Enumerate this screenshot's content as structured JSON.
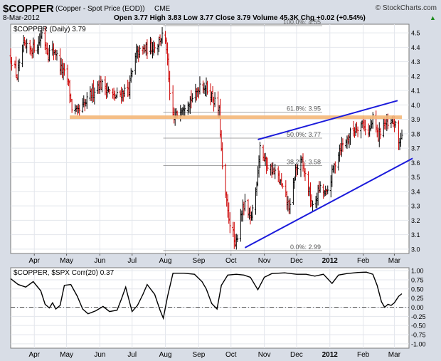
{
  "header": {
    "symbol": "$COPPER",
    "name": "(Copper - Spot Price (EOD))",
    "exchange": "CME",
    "watermark": "© StockCharts.com",
    "date": "8-Mar-2012",
    "quote": "Open 3.77  High 3.83  Low 3.77  Close 3.79  Volume 45.3K  Chg +0.02 (+0.54%)",
    "up_arrow": "▲"
  },
  "colors": {
    "background": "#d8dde6",
    "panel": "#ffffff",
    "up_bar": "#000000",
    "down_bar": "#cc0000",
    "resistance": "#f5b87a",
    "trendline": "#1a1adb",
    "fib": "#888888"
  },
  "chart_data": [
    {
      "type": "ohlc",
      "legend": "$COPPER (Daily) 3.79",
      "y_ticks": [
        3.0,
        3.1,
        3.2,
        3.3,
        3.4,
        3.5,
        3.6,
        3.7,
        3.8,
        3.9,
        4.0,
        4.1,
        4.2,
        4.3,
        4.4,
        4.5
      ],
      "y_tick_labels": [
        "3.0",
        "3.1",
        "3.2",
        "3.3",
        "3.4",
        "3.5",
        "3.6",
        "3.7",
        "3.8",
        "3.9",
        "4.0",
        "4.1",
        "4.2",
        "4.3",
        "4.4",
        "4.5"
      ],
      "x_labels": [
        "Apr",
        "May",
        "Jun",
        "Jul",
        "Aug",
        "Sep",
        "Oct",
        "Nov",
        "Dec",
        "2012",
        "Feb",
        "Mar"
      ],
      "x_label_dates": [
        "2011-04-01",
        "2011-05-01",
        "2011-06-01",
        "2011-07-01",
        "2011-08-01",
        "2011-09-01",
        "2011-10-01",
        "2011-11-01",
        "2011-12-01",
        "2012-01-01",
        "2012-02-01",
        "2012-03-01"
      ],
      "x_range": [
        "2011-03-10",
        "2012-03-08"
      ],
      "close_path": [
        [
          "2011-03-10",
          4.33
        ],
        [
          "2011-03-16",
          4.2
        ],
        [
          "2011-03-22",
          4.4
        ],
        [
          "2011-03-28",
          4.38
        ],
        [
          "2011-04-05",
          4.43
        ],
        [
          "2011-04-08",
          4.5
        ],
        [
          "2011-04-14",
          4.36
        ],
        [
          "2011-04-20",
          4.38
        ],
        [
          "2011-04-26",
          4.25
        ],
        [
          "2011-05-02",
          4.18
        ],
        [
          "2011-05-06",
          3.98
        ],
        [
          "2011-05-11",
          3.94
        ],
        [
          "2011-05-18",
          4.0
        ],
        [
          "2011-05-24",
          4.08
        ],
        [
          "2011-05-31",
          4.15
        ],
        [
          "2011-06-07",
          4.12
        ],
        [
          "2011-06-14",
          4.05
        ],
        [
          "2011-06-21",
          4.08
        ],
        [
          "2011-06-28",
          4.12
        ],
        [
          "2011-07-05",
          4.35
        ],
        [
          "2011-07-11",
          4.38
        ],
        [
          "2011-07-18",
          4.4
        ],
        [
          "2011-07-25",
          4.43
        ],
        [
          "2011-07-29",
          4.48
        ],
        [
          "2011-08-02",
          4.4
        ],
        [
          "2011-08-05",
          4.05
        ],
        [
          "2011-08-09",
          3.9
        ],
        [
          "2011-08-15",
          3.98
        ],
        [
          "2011-08-22",
          4.03
        ],
        [
          "2011-08-29",
          4.06
        ],
        [
          "2011-09-02",
          4.15
        ],
        [
          "2011-09-08",
          4.12
        ],
        [
          "2011-09-14",
          4.05
        ],
        [
          "2011-09-20",
          3.95
        ],
        [
          "2011-09-23",
          3.55
        ],
        [
          "2011-09-28",
          3.25
        ],
        [
          "2011-10-03",
          3.1
        ],
        [
          "2011-10-05",
          3.0
        ],
        [
          "2011-10-10",
          3.25
        ],
        [
          "2011-10-14",
          3.3
        ],
        [
          "2011-10-19",
          3.2
        ],
        [
          "2011-10-24",
          3.4
        ],
        [
          "2011-10-28",
          3.72
        ],
        [
          "2011-11-02",
          3.6
        ],
        [
          "2011-11-08",
          3.55
        ],
        [
          "2011-11-14",
          3.5
        ],
        [
          "2011-11-21",
          3.35
        ],
        [
          "2011-11-25",
          3.28
        ],
        [
          "2011-11-30",
          3.55
        ],
        [
          "2011-12-06",
          3.6
        ],
        [
          "2011-12-12",
          3.42
        ],
        [
          "2011-12-16",
          3.28
        ],
        [
          "2011-12-22",
          3.42
        ],
        [
          "2011-12-29",
          3.38
        ],
        [
          "2012-01-04",
          3.55
        ],
        [
          "2012-01-10",
          3.7
        ],
        [
          "2012-01-16",
          3.75
        ],
        [
          "2012-01-20",
          3.8
        ],
        [
          "2012-01-26",
          3.85
        ],
        [
          "2012-02-01",
          3.88
        ],
        [
          "2012-02-06",
          3.8
        ],
        [
          "2012-02-10",
          3.9
        ],
        [
          "2012-02-15",
          3.78
        ],
        [
          "2012-02-20",
          3.88
        ],
        [
          "2012-02-24",
          3.85
        ],
        [
          "2012-03-01",
          3.88
        ],
        [
          "2012-03-05",
          3.74
        ],
        [
          "2012-03-08",
          3.79
        ]
      ],
      "resistance_level": 3.915,
      "fib_levels": [
        {
          "label": "100.0%: 4.55",
          "value": 4.55
        },
        {
          "label": "61.8%: 3.95",
          "value": 3.95
        },
        {
          "label": "50.0%: 3.77",
          "value": 3.77
        },
        {
          "label": "38.2%: 3.58",
          "value": 3.58
        },
        {
          "label": "0.0%: 2.99",
          "value": 2.99
        }
      ],
      "fib_start_date": "2011-07-30",
      "trendlines": [
        {
          "from": [
            "2011-10-14",
            3.01
          ],
          "to": [
            "2012-03-18",
            3.63
          ]
        },
        {
          "from": [
            "2011-10-26",
            3.76
          ],
          "to": [
            "2012-03-04",
            4.03
          ]
        }
      ],
      "grid": true
    },
    {
      "type": "line",
      "legend": "$COPPER, $SPX Corr(20) 0.37",
      "y_ticks": [
        1.0,
        0.75,
        0.5,
        0.25,
        0.0,
        -0.25,
        -0.5,
        -0.75,
        -1.0
      ],
      "y_tick_labels": [
        "1.00",
        "0.75",
        "0.50",
        "0.25",
        "0.00",
        "-0.25",
        "-0.50",
        "-0.75",
        "-1.00"
      ],
      "zero_line": 0.0,
      "x_labels": [
        "Apr",
        "May",
        "Jun",
        "Jul",
        "Aug",
        "Sep",
        "Oct",
        "Nov",
        "Dec",
        "2012",
        "Feb",
        "Mar"
      ],
      "x_label_dates": [
        "2011-04-01",
        "2011-05-01",
        "2011-06-01",
        "2011-07-01",
        "2011-08-01",
        "2011-09-01",
        "2011-10-01",
        "2011-11-01",
        "2011-12-01",
        "2012-01-01",
        "2012-02-01",
        "2012-03-01"
      ],
      "x_range": [
        "2011-03-10",
        "2012-03-08"
      ],
      "values": [
        [
          "2011-03-10",
          0.78
        ],
        [
          "2011-03-17",
          0.62
        ],
        [
          "2011-03-24",
          0.55
        ],
        [
          "2011-03-31",
          0.7
        ],
        [
          "2011-04-07",
          0.45
        ],
        [
          "2011-04-11",
          0.08
        ],
        [
          "2011-04-15",
          -0.02
        ],
        [
          "2011-04-18",
          0.12
        ],
        [
          "2011-04-21",
          -0.05
        ],
        [
          "2011-04-25",
          0.05
        ],
        [
          "2011-04-29",
          0.6
        ],
        [
          "2011-05-05",
          0.62
        ],
        [
          "2011-05-11",
          0.3
        ],
        [
          "2011-05-16",
          -0.05
        ],
        [
          "2011-05-21",
          -0.18
        ],
        [
          "2011-05-28",
          -0.1
        ],
        [
          "2011-06-04",
          0.02
        ],
        [
          "2011-06-10",
          -0.12
        ],
        [
          "2011-06-17",
          -0.08
        ],
        [
          "2011-06-21",
          0.22
        ],
        [
          "2011-06-25",
          0.55
        ],
        [
          "2011-06-29",
          0.1
        ],
        [
          "2011-07-01",
          -0.12
        ],
        [
          "2011-07-06",
          0.05
        ],
        [
          "2011-07-11",
          0.35
        ],
        [
          "2011-07-15",
          0.62
        ],
        [
          "2011-07-22",
          0.35
        ],
        [
          "2011-07-27",
          -0.08
        ],
        [
          "2011-07-30",
          -0.3
        ],
        [
          "2011-08-03",
          0.3
        ],
        [
          "2011-08-08",
          0.93
        ],
        [
          "2011-08-18",
          0.93
        ],
        [
          "2011-08-28",
          0.9
        ],
        [
          "2011-09-04",
          0.7
        ],
        [
          "2011-09-08",
          0.5
        ],
        [
          "2011-09-13",
          0.1
        ],
        [
          "2011-09-18",
          -0.05
        ],
        [
          "2011-09-22",
          0.6
        ],
        [
          "2011-09-28",
          0.88
        ],
        [
          "2011-10-06",
          0.9
        ],
        [
          "2011-10-13",
          0.88
        ],
        [
          "2011-10-19",
          0.82
        ],
        [
          "2011-10-26",
          0.48
        ],
        [
          "2011-11-01",
          0.82
        ],
        [
          "2011-11-08",
          0.92
        ],
        [
          "2011-11-20",
          0.94
        ],
        [
          "2011-12-01",
          0.9
        ],
        [
          "2011-12-10",
          0.9
        ],
        [
          "2011-12-18",
          0.85
        ],
        [
          "2011-12-26",
          0.9
        ],
        [
          "2012-01-03",
          0.65
        ],
        [
          "2012-01-09",
          0.88
        ],
        [
          "2012-01-17",
          0.92
        ],
        [
          "2012-01-27",
          0.95
        ],
        [
          "2012-02-04",
          0.96
        ],
        [
          "2012-02-10",
          0.9
        ],
        [
          "2012-02-14",
          0.6
        ],
        [
          "2012-02-18",
          0.15
        ],
        [
          "2012-02-21",
          0.0
        ],
        [
          "2012-02-24",
          0.08
        ],
        [
          "2012-02-27",
          0.05
        ],
        [
          "2012-03-01",
          0.12
        ],
        [
          "2012-03-05",
          0.3
        ],
        [
          "2012-03-08",
          0.37
        ]
      ],
      "grid": true
    }
  ]
}
